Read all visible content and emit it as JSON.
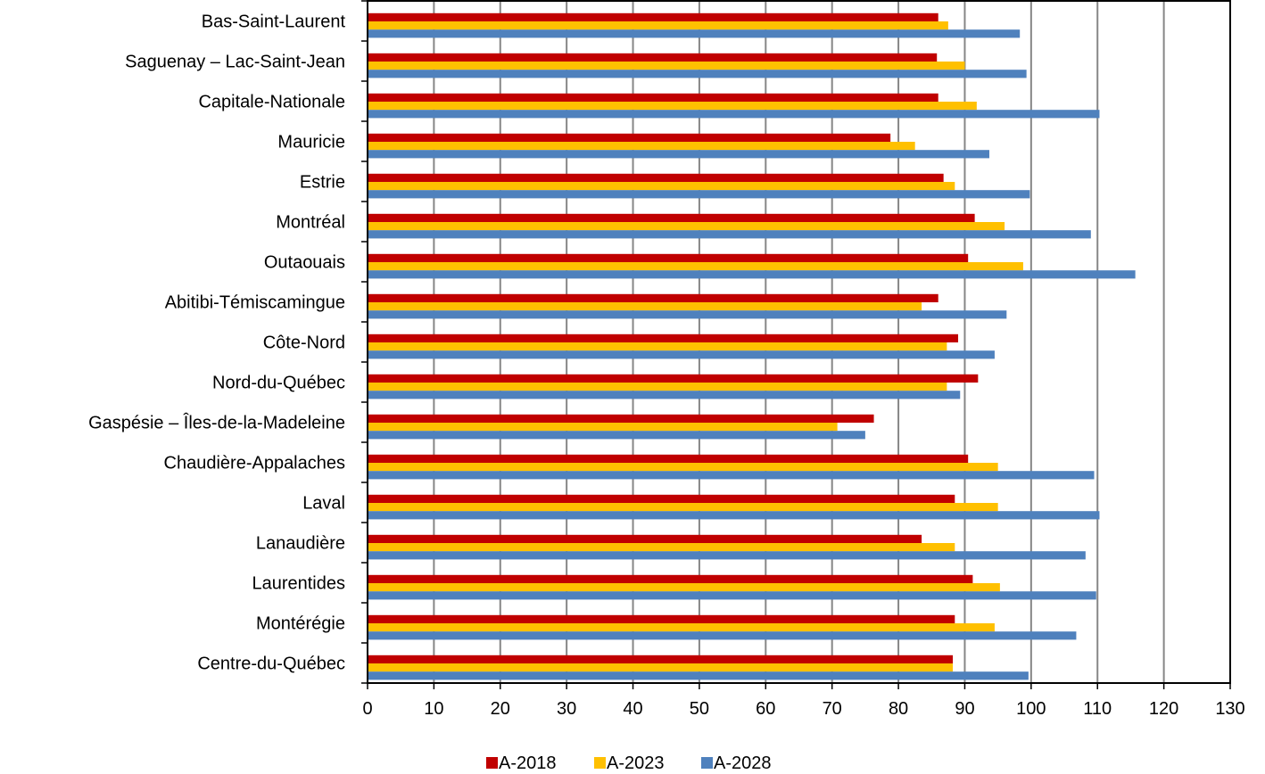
{
  "chart_data": {
    "type": "bar",
    "orientation": "horizontal",
    "categories": [
      "Bas-Saint-Laurent",
      "Saguenay – Lac-Saint-Jean",
      "Capitale-Nationale",
      "Mauricie",
      "Estrie",
      "Montréal",
      "Outaouais",
      "Abitibi-Témiscamingue",
      "Côte-Nord",
      "Nord-du-Québec",
      "Gaspésie – Îles-de-la-Madeleine",
      "Chaudière-Appalaches",
      "Laval",
      "Lanaudière",
      "Laurentides",
      "Montérégie",
      "Centre-du-Québec"
    ],
    "series": [
      {
        "name": "A-2018",
        "color": "#C00000",
        "values": [
          86,
          85.8,
          86,
          78.8,
          86.8,
          91.5,
          90.5,
          86,
          89,
          92,
          76.3,
          90.5,
          88.5,
          83.5,
          91.2,
          88.5,
          88.2
        ]
      },
      {
        "name": "A-2023",
        "color": "#FFC000",
        "values": [
          87.5,
          90,
          91.8,
          82.5,
          88.5,
          96,
          98.8,
          83.5,
          87.3,
          87.3,
          70.8,
          95,
          95,
          88.5,
          95.3,
          94.5,
          88.2
        ]
      },
      {
        "name": "A-2028",
        "color": "#4F81BD",
        "values": [
          98.3,
          99.3,
          110.3,
          93.7,
          99.8,
          109,
          115.7,
          96.3,
          94.5,
          89.3,
          75,
          109.5,
          110.3,
          108.2,
          109.8,
          106.8,
          99.6
        ]
      }
    ],
    "xlim": [
      0,
      130
    ],
    "xticks": [
      0,
      10,
      20,
      30,
      40,
      50,
      60,
      70,
      80,
      90,
      100,
      110,
      120,
      130
    ],
    "grid": "vertical",
    "legend": "bottom",
    "title": "",
    "xlabel": "",
    "ylabel": ""
  }
}
